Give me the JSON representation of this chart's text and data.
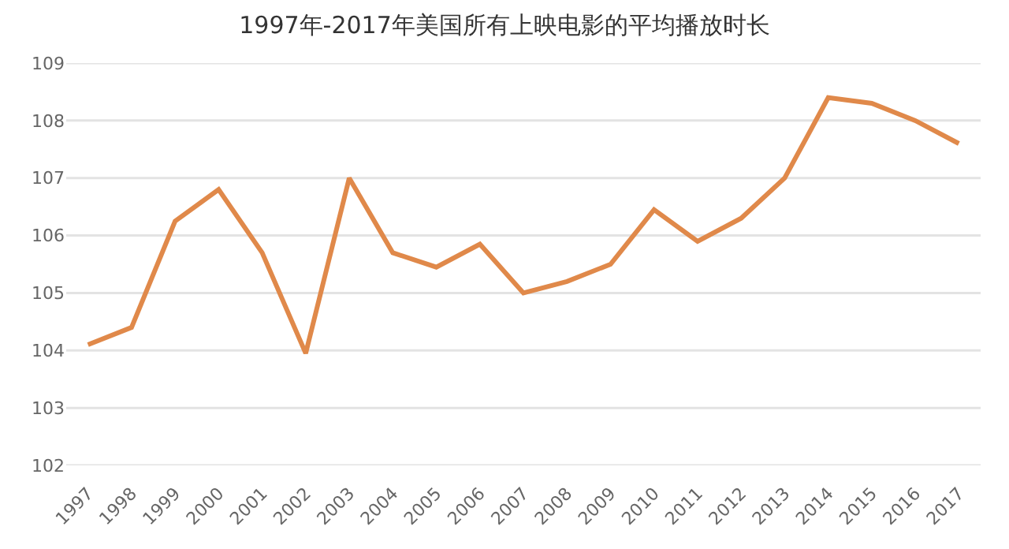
{
  "chart_data": {
    "type": "line",
    "title": "1997年-2017年美国所有上映电影的平均播放时长",
    "categories": [
      "1997",
      "1998",
      "1999",
      "2000",
      "2001",
      "2002",
      "2003",
      "2004",
      "2005",
      "2006",
      "2007",
      "2008",
      "2009",
      "2010",
      "2011",
      "2012",
      "2013",
      "2014",
      "2015",
      "2016",
      "2017"
    ],
    "series": [
      {
        "color": "#e0894a",
        "values": [
          104.1,
          104.4,
          106.25,
          106.8,
          105.7,
          103.95,
          107.0,
          105.7,
          105.45,
          105.85,
          105.0,
          105.2,
          105.5,
          106.45,
          105.9,
          106.3,
          107.0,
          108.4,
          108.3,
          108.0,
          107.6
        ]
      }
    ],
    "ylim": [
      102,
      109
    ],
    "yticks": [
      102,
      103,
      104,
      105,
      106,
      107,
      108,
      109
    ],
    "grid": "y",
    "marker": "none",
    "line_style": "solid"
  }
}
